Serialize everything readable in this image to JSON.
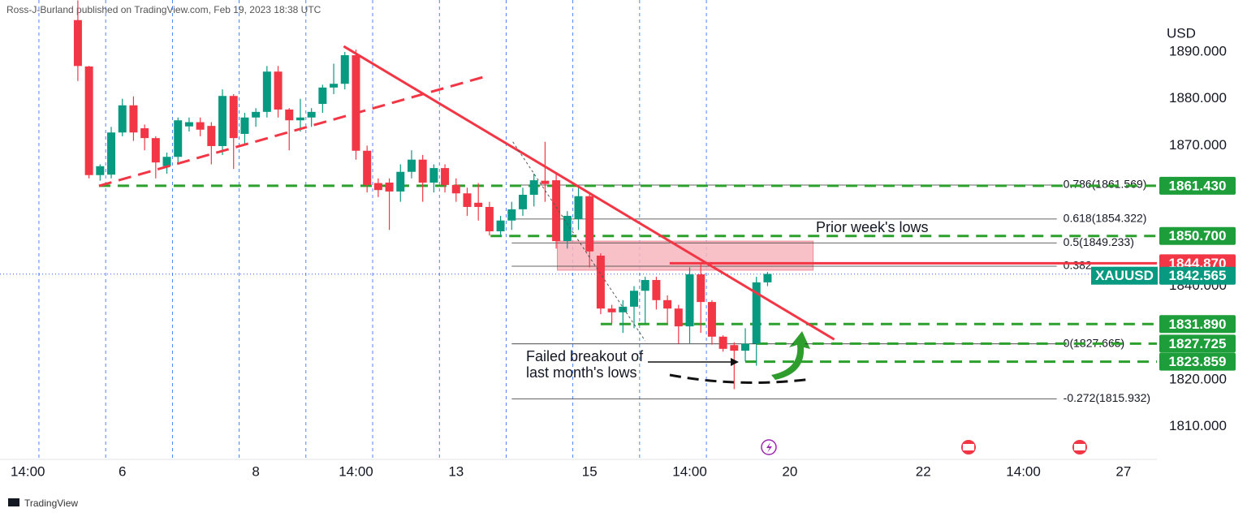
{
  "chart_data": {
    "type": "candlestick",
    "header": "Ross-J-Burland published on TradingView.com, Feb 19, 2023 18:38 UTC",
    "currency": "USD",
    "footer": "TradingView",
    "symbol": "XAUUSD",
    "up_color": "#089981",
    "down_color": "#f23645",
    "xlim": [
      -7,
      97
    ],
    "ylim": [
      1803.17,
      1901.09
    ],
    "xticks": [
      {
        "value": -4.5,
        "label": "14:00"
      },
      {
        "value": 4,
        "label": "6"
      },
      {
        "value": 16,
        "label": "8"
      },
      {
        "value": 25,
        "label": "14:00"
      },
      {
        "value": 34,
        "label": "13"
      },
      {
        "value": 46,
        "label": "15"
      },
      {
        "value": 55,
        "label": "14:00"
      },
      {
        "value": 64,
        "label": "20"
      },
      {
        "value": 76,
        "label": "22"
      },
      {
        "value": 85,
        "label": "14:00"
      },
      {
        "value": 94,
        "label": "27"
      }
    ],
    "xgrid": [
      -3.5,
      2.5,
      8.5,
      14.5,
      20.5,
      26.5,
      32.5,
      38.5,
      44.5,
      50.5,
      56.5
    ],
    "yticks": [
      {
        "value": 1810,
        "label": "1810.000"
      },
      {
        "value": 1820,
        "label": "1820.000"
      },
      {
        "value": 1840,
        "label": "1840.000"
      },
      {
        "value": 1870,
        "label": "1870.000"
      },
      {
        "value": 1880,
        "label": "1880.000"
      },
      {
        "value": 1890,
        "label": "1890.000"
      }
    ],
    "candles": {
      "open": [
        1896.8,
        1886.9,
        1863.7,
        1863.8,
        1872.8,
        1878.6,
        1873.7,
        1871.6,
        1865.6,
        1867.6,
        1874.1,
        1875,
        1874.2,
        1869.9,
        1880.6,
        1872.5,
        1876,
        1877.2,
        1885.8,
        1877.7,
        1875.4,
        1876,
        1878.9,
        1882.4,
        1883.2,
        1889.3,
        1868.9,
        1862,
        1862.1,
        1860.2,
        1864.4,
        1867,
        1862.1,
        1865.2,
        1861.6,
        1859.8,
        1857.8,
        1856.9,
        1851.7,
        1854,
        1856.4,
        1859.5,
        1862.5,
        1862.6,
        1849.6,
        1854.3,
        1859.2,
        1846.5,
        1835.2,
        1834.4,
        1835.6,
        1839,
        1841.3,
        1837,
        1835.2,
        1831.4,
        1842.5,
        1836.6,
        1829.2,
        1827.4,
        1826.2,
        1827.7,
        1840.8
      ],
      "high": [
        1901,
        1887,
        1866,
        1874,
        1880,
        1880.5,
        1874.5,
        1872,
        1868.5,
        1876,
        1876,
        1876,
        1875,
        1882,
        1881,
        1877,
        1878,
        1887,
        1887,
        1878,
        1880,
        1878,
        1883,
        1887.5,
        1890,
        1890.5,
        1870,
        1863,
        1863,
        1866,
        1869,
        1868,
        1866,
        1866,
        1863,
        1861,
        1862,
        1858,
        1855,
        1858,
        1861,
        1864,
        1870.8,
        1864,
        1856,
        1861,
        1860,
        1847,
        1836,
        1837,
        1840,
        1842,
        1842,
        1838,
        1836,
        1844,
        1845,
        1837,
        1829.5,
        1828,
        1831,
        1842,
        1843
      ],
      "low": [
        1883.8,
        1863,
        1862.5,
        1863,
        1872,
        1871,
        1869,
        1863,
        1864,
        1866,
        1873,
        1872,
        1866,
        1868,
        1865,
        1870,
        1874,
        1876,
        1876,
        1869,
        1873,
        1874,
        1877,
        1881,
        1882,
        1867,
        1860,
        1859,
        1852,
        1858,
        1863,
        1858,
        1860,
        1860,
        1858,
        1855,
        1854,
        1850.8,
        1850.7,
        1852,
        1855,
        1857,
        1858,
        1848,
        1848,
        1852,
        1844,
        1834,
        1832,
        1830,
        1831,
        1832,
        1835,
        1832,
        1827.7,
        1827.6,
        1830,
        1827.5,
        1826,
        1818,
        1823.9,
        1823,
        1840
      ],
      "close": [
        1887,
        1863.7,
        1865.6,
        1872.8,
        1878.6,
        1872.8,
        1871.6,
        1866.4,
        1867.6,
        1875.4,
        1875,
        1873.4,
        1869.9,
        1880.6,
        1871.6,
        1876,
        1877.2,
        1885.8,
        1877.7,
        1875.4,
        1876,
        1877.2,
        1882.4,
        1883.2,
        1889.3,
        1868.9,
        1861.6,
        1860.5,
        1860.2,
        1864.4,
        1867,
        1862.1,
        1865.2,
        1861.6,
        1859.8,
        1856.9,
        1856.9,
        1851.7,
        1854,
        1856.4,
        1859.5,
        1862.6,
        1861.8,
        1849.6,
        1855,
        1859.2,
        1847.4,
        1835.2,
        1834.4,
        1835.6,
        1839,
        1841.3,
        1837,
        1835.2,
        1831.4,
        1842.5,
        1836.6,
        1829.2,
        1826.6,
        1826.2,
        1827.7,
        1840.8,
        1842.6
      ]
    },
    "last_price": {
      "value": 1842.565,
      "color": "#089981"
    },
    "levels": [
      {
        "value": 1861.43,
        "label": "1861.430",
        "color": "#2ca02c",
        "from": 1.9
      },
      {
        "value": 1850.7,
        "label": "1850.700",
        "color": "#2ca02c",
        "from": 37.1
      },
      {
        "value": 1844.87,
        "label": "1844.870",
        "color": "#f23645",
        "from": 53.2
      },
      {
        "value": 1831.89,
        "label": "1831.890",
        "color": "#2ca02c",
        "from": 47
      },
      {
        "value": 1827.725,
        "color": "#2ca02c",
        "from": 61
      },
      {
        "value": 1823.859,
        "color": "#2ca02c",
        "from": 60
      }
    ],
    "fib": {
      "from": 39,
      "to": 88,
      "levels": [
        {
          "label": "0.786(1861.569)",
          "value": 1861.569
        },
        {
          "label": "0.618(1854.322)",
          "value": 1854.322
        },
        {
          "label": "0.5(1849.233)",
          "value": 1849.233
        },
        {
          "label": "0.382",
          "value": 1844.25
        },
        {
          "label": "0(1827.665)",
          "value": 1827.665
        },
        {
          "label": "-0.272(1815.932)",
          "value": 1815.932
        }
      ]
    },
    "zone": {
      "from": 43.1,
      "to": 66.1,
      "low": 1843.4,
      "high": 1849.6,
      "color": "#f7b6bd"
    },
    "trendlines": [
      {
        "x": [
          23.9,
          68
        ],
        "y": [
          1891.2,
          1828.6
        ],
        "color": "#f23645",
        "dashed": false
      },
      {
        "x": [
          1.9,
          37
        ],
        "y": [
          1861.4,
          1885
        ],
        "color": "#f23645",
        "dashed": true
      },
      {
        "x": [
          39.1,
          51
        ],
        "y": [
          1870.8,
          1828.3
        ],
        "color": "#555555",
        "dashed": true
      }
    ],
    "annotations": [
      "Prior week's lows",
      "Failed breakout of",
      "last month's lows"
    ]
  }
}
